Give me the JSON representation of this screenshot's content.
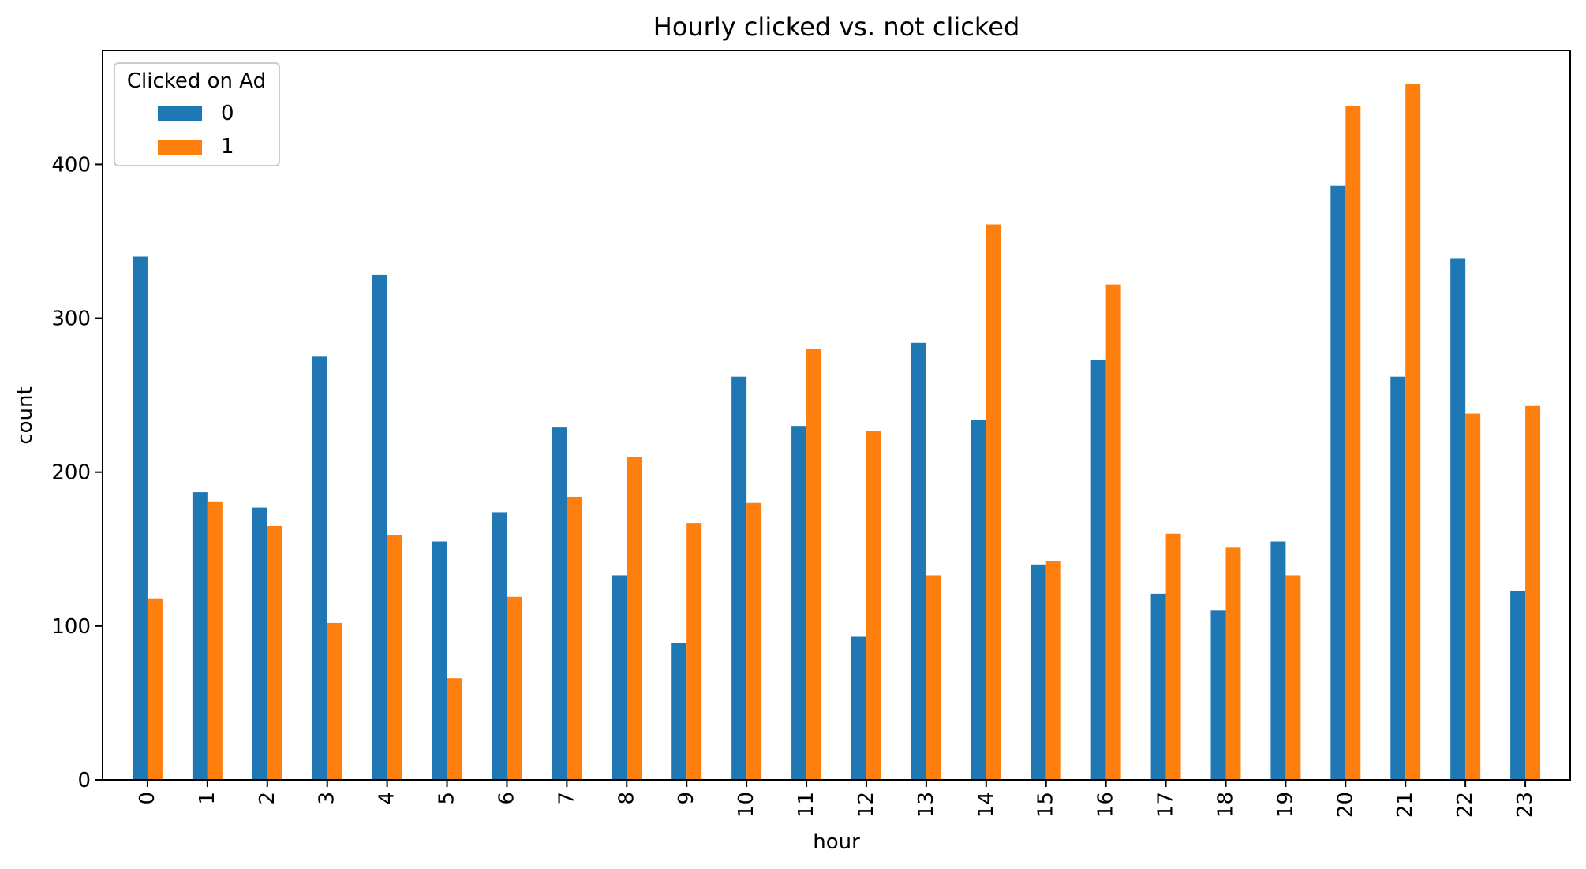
{
  "chart_data": {
    "type": "bar",
    "title": "Hourly clicked vs. not clicked",
    "xlabel": "hour",
    "ylabel": "count",
    "categories": [
      "0",
      "1",
      "2",
      "3",
      "4",
      "5",
      "6",
      "7",
      "8",
      "9",
      "10",
      "11",
      "12",
      "13",
      "14",
      "15",
      "16",
      "17",
      "18",
      "19",
      "20",
      "21",
      "22",
      "23"
    ],
    "series": [
      {
        "name": "0",
        "color": "#1f77b4",
        "values": [
          340,
          187,
          177,
          275,
          328,
          155,
          174,
          229,
          133,
          89,
          262,
          230,
          93,
          284,
          234,
          140,
          273,
          121,
          110,
          155,
          386,
          262,
          339,
          123
        ]
      },
      {
        "name": "1",
        "color": "#ff7f0e",
        "values": [
          118,
          181,
          165,
          102,
          159,
          66,
          119,
          184,
          210,
          167,
          180,
          280,
          227,
          133,
          361,
          142,
          322,
          160,
          151,
          133,
          438,
          452,
          238,
          243
        ]
      }
    ],
    "ylim": [
      0,
      474
    ],
    "yticks": [
      0,
      100,
      200,
      300,
      400
    ],
    "grid": false,
    "legend": {
      "title": "Clicked on Ad",
      "position": "top-left"
    }
  }
}
